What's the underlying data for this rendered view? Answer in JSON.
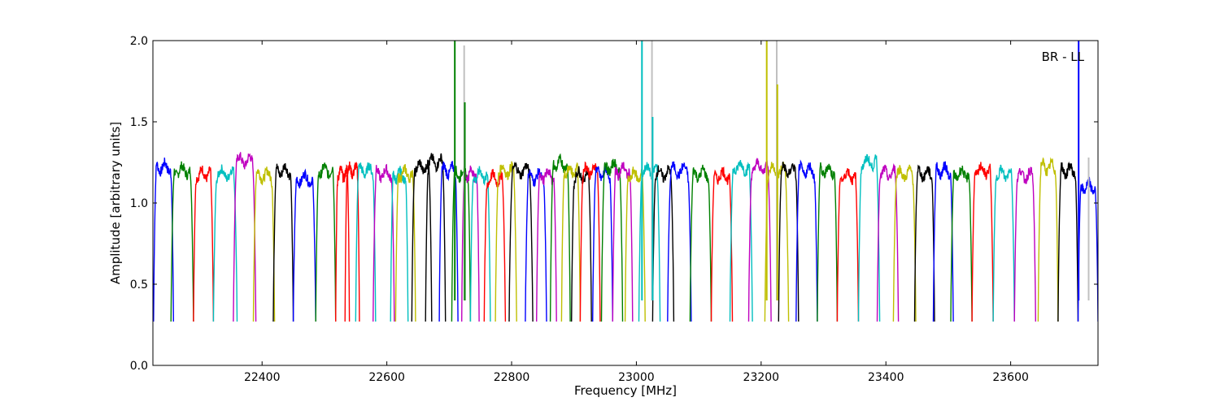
{
  "chart_data": {
    "type": "line",
    "title": "",
    "xlabel": "Frequency [MHz]",
    "ylabel": "Amplitude [arbitrary units]",
    "annotation": "BR - LL",
    "xlim": [
      22225,
      23740
    ],
    "ylim": [
      0.0,
      2.0
    ],
    "xticks": [
      22400,
      22600,
      22800,
      23000,
      23200,
      23400,
      23600
    ],
    "yticks": [
      0.0,
      0.5,
      1.0,
      1.5,
      2.0
    ],
    "xtick_labels": [
      "22400",
      "22600",
      "22800",
      "23000",
      "23200",
      "23400",
      "23600"
    ],
    "ytick_labels": [
      "0.0",
      "0.5",
      "1.0",
      "1.5",
      "2.0"
    ],
    "grid": false,
    "legend": false,
    "colors": [
      "#0000ff",
      "#008000",
      "#ff0000",
      "#00bfbf",
      "#bf00bf",
      "#bfbf00",
      "#000000"
    ],
    "band_width_mhz": 32,
    "bands": [
      {
        "start": 22226,
        "end": 22258,
        "color": "#0000ff",
        "level": 1.22
      },
      {
        "start": 22254,
        "end": 22290,
        "color": "#008000",
        "level": 1.2
      },
      {
        "start": 22290,
        "end": 22322,
        "color": "#ff0000",
        "level": 1.18
      },
      {
        "start": 22322,
        "end": 22360,
        "color": "#00bfbf",
        "level": 1.18
      },
      {
        "start": 22354,
        "end": 22390,
        "color": "#bf00bf",
        "level": 1.26
      },
      {
        "start": 22386,
        "end": 22420,
        "color": "#bfbf00",
        "level": 1.17
      },
      {
        "start": 22418,
        "end": 22450,
        "color": "#000000",
        "level": 1.2
      },
      {
        "start": 22450,
        "end": 22486,
        "color": "#0000ff",
        "level": 1.15
      },
      {
        "start": 22486,
        "end": 22518,
        "color": "#008000",
        "level": 1.2
      },
      {
        "start": 22518,
        "end": 22540,
        "color": "#ff0000",
        "level": 1.18
      },
      {
        "start": 22533,
        "end": 22556,
        "color": "#ff0000",
        "level": 1.2
      },
      {
        "start": 22550,
        "end": 22582,
        "color": "#00bfbf",
        "level": 1.2
      },
      {
        "start": 22578,
        "end": 22612,
        "color": "#bf00bf",
        "level": 1.18
      },
      {
        "start": 22606,
        "end": 22634,
        "color": "#00bfbf",
        "level": 1.17
      },
      {
        "start": 22614,
        "end": 22646,
        "color": "#bfbf00",
        "level": 1.18
      },
      {
        "start": 22640,
        "end": 22672,
        "color": "#000000",
        "level": 1.22
      },
      {
        "start": 22662,
        "end": 22694,
        "color": "#000000",
        "level": 1.25
      },
      {
        "start": 22684,
        "end": 22714,
        "color": "#0000ff",
        "level": 1.2
      },
      {
        "start": 22704,
        "end": 22734,
        "color": "#008000",
        "level": 1.18
      },
      {
        "start": 22720,
        "end": 22748,
        "color": "#bf00bf",
        "level": 1.18
      },
      {
        "start": 22734,
        "end": 22766,
        "color": "#00bfbf",
        "level": 1.17
      },
      {
        "start": 22756,
        "end": 22790,
        "color": "#ff0000",
        "level": 1.15
      },
      {
        "start": 22774,
        "end": 22808,
        "color": "#bfbf00",
        "level": 1.2
      },
      {
        "start": 22796,
        "end": 22834,
        "color": "#000000",
        "level": 1.2
      },
      {
        "start": 22822,
        "end": 22856,
        "color": "#0000ff",
        "level": 1.16
      },
      {
        "start": 22840,
        "end": 22872,
        "color": "#bf00bf",
        "level": 1.17
      },
      {
        "start": 22862,
        "end": 22894,
        "color": "#008000",
        "level": 1.24
      },
      {
        "start": 22880,
        "end": 22910,
        "color": "#bfbf00",
        "level": 1.2
      },
      {
        "start": 22896,
        "end": 22928,
        "color": "#000000",
        "level": 1.17
      },
      {
        "start": 22910,
        "end": 22942,
        "color": "#ff0000",
        "level": 1.2
      },
      {
        "start": 22930,
        "end": 22962,
        "color": "#0000ff",
        "level": 1.18
      },
      {
        "start": 22944,
        "end": 22978,
        "color": "#008000",
        "level": 1.22
      },
      {
        "start": 22962,
        "end": 22994,
        "color": "#bf00bf",
        "level": 1.2
      },
      {
        "start": 22982,
        "end": 23014,
        "color": "#bfbf00",
        "level": 1.17
      },
      {
        "start": 23004,
        "end": 23038,
        "color": "#00bfbf",
        "level": 1.2
      },
      {
        "start": 23026,
        "end": 23060,
        "color": "#000000",
        "level": 1.18
      },
      {
        "start": 23050,
        "end": 23088,
        "color": "#0000ff",
        "level": 1.2
      },
      {
        "start": 23086,
        "end": 23120,
        "color": "#008000",
        "level": 1.18
      },
      {
        "start": 23120,
        "end": 23154,
        "color": "#ff0000",
        "level": 1.17
      },
      {
        "start": 23150,
        "end": 23186,
        "color": "#00bfbf",
        "level": 1.22
      },
      {
        "start": 23180,
        "end": 23216,
        "color": "#bf00bf",
        "level": 1.22
      },
      {
        "start": 23206,
        "end": 23244,
        "color": "#bfbf00",
        "level": 1.2
      },
      {
        "start": 23228,
        "end": 23260,
        "color": "#000000",
        "level": 1.2
      },
      {
        "start": 23256,
        "end": 23290,
        "color": "#0000ff",
        "level": 1.2
      },
      {
        "start": 23290,
        "end": 23322,
        "color": "#008000",
        "level": 1.2
      },
      {
        "start": 23322,
        "end": 23356,
        "color": "#ff0000",
        "level": 1.17
      },
      {
        "start": 23356,
        "end": 23390,
        "color": "#00bfbf",
        "level": 1.25
      },
      {
        "start": 23386,
        "end": 23420,
        "color": "#bf00bf",
        "level": 1.18
      },
      {
        "start": 23412,
        "end": 23448,
        "color": "#bfbf00",
        "level": 1.18
      },
      {
        "start": 23446,
        "end": 23478,
        "color": "#000000",
        "level": 1.18
      },
      {
        "start": 23476,
        "end": 23508,
        "color": "#0000ff",
        "level": 1.2
      },
      {
        "start": 23504,
        "end": 23538,
        "color": "#008000",
        "level": 1.18
      },
      {
        "start": 23538,
        "end": 23572,
        "color": "#ff0000",
        "level": 1.2
      },
      {
        "start": 23572,
        "end": 23606,
        "color": "#00bfbf",
        "level": 1.18
      },
      {
        "start": 23606,
        "end": 23640,
        "color": "#bf00bf",
        "level": 1.17
      },
      {
        "start": 23644,
        "end": 23676,
        "color": "#bfbf00",
        "level": 1.22
      },
      {
        "start": 23676,
        "end": 23708,
        "color": "#000000",
        "level": 1.2
      },
      {
        "start": 23708,
        "end": 23740,
        "color": "#0000ff",
        "level": 1.1
      }
    ],
    "spikes": [
      {
        "x": 22709,
        "ymax": 2.0,
        "color": "#008000"
      },
      {
        "x": 22724,
        "ymax": 1.97,
        "color": "#c0c0c0"
      },
      {
        "x": 22725,
        "ymax": 1.62,
        "color": "#008000"
      },
      {
        "x": 23009,
        "ymax": 2.0,
        "color": "#00bfbf"
      },
      {
        "x": 23025,
        "ymax": 2.0,
        "color": "#c0c0c0"
      },
      {
        "x": 23026,
        "ymax": 1.53,
        "color": "#00bfbf"
      },
      {
        "x": 23209,
        "ymax": 2.0,
        "color": "#bfbf00"
      },
      {
        "x": 23225,
        "ymax": 2.0,
        "color": "#c0c0c0"
      },
      {
        "x": 23226,
        "ymax": 1.73,
        "color": "#bfbf00"
      },
      {
        "x": 23709,
        "ymax": 2.0,
        "color": "#0000ff"
      },
      {
        "x": 23725,
        "ymax": 1.28,
        "color": "#c0c0c0"
      }
    ]
  }
}
